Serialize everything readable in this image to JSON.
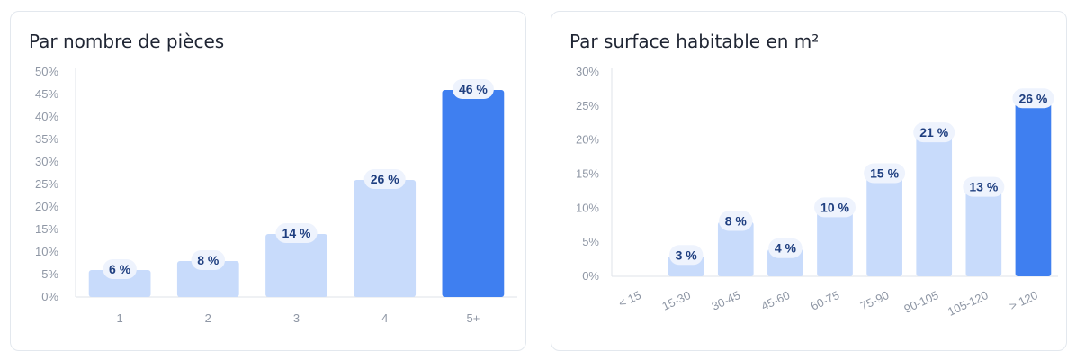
{
  "colors": {
    "bar_light": "#c8dbfb",
    "bar_highlight": "#3f7ff0",
    "axis": "#dfe3ea",
    "label_bg": "#eef3fd",
    "label_text": "#1f3f80"
  },
  "charts": [
    {
      "title": "Par nombre de pièces"
    },
    {
      "title": "Par surface habitable en m²"
    }
  ],
  "chart_data": [
    {
      "type": "bar",
      "title": "Par nombre de pièces",
      "categories": [
        "1",
        "2",
        "3",
        "4",
        "5+"
      ],
      "values": [
        6,
        8,
        14,
        26,
        46
      ],
      "data_labels": [
        "6 %",
        "8 %",
        "14 %",
        "26 %",
        "46 %"
      ],
      "highlight": [
        false,
        false,
        false,
        false,
        true
      ],
      "yticks": [
        "0%",
        "5%",
        "10%",
        "15%",
        "20%",
        "25%",
        "30%",
        "35%",
        "40%",
        "45%",
        "50%"
      ],
      "ylim": [
        0,
        50
      ],
      "xlabel": "",
      "ylabel": "",
      "grid": false,
      "legend": "none"
    },
    {
      "type": "bar",
      "title": "Par surface habitable en m²",
      "categories": [
        "< 15",
        "15-30",
        "30-45",
        "45-60",
        "60-75",
        "75-90",
        "90-105",
        "105-120",
        "> 120"
      ],
      "values": [
        0,
        3,
        8,
        4,
        10,
        15,
        21,
        13,
        26
      ],
      "data_labels": [
        "",
        "3 %",
        "8 %",
        "4 %",
        "10 %",
        "15 %",
        "21 %",
        "13 %",
        "26 %"
      ],
      "highlight": [
        false,
        false,
        false,
        false,
        false,
        false,
        false,
        false,
        true
      ],
      "yticks": [
        "0%",
        "5%",
        "10%",
        "15%",
        "20%",
        "25%",
        "30%"
      ],
      "ylim": [
        0,
        30
      ],
      "xlabel": "",
      "ylabel": "",
      "grid": false,
      "legend": "none"
    }
  ]
}
